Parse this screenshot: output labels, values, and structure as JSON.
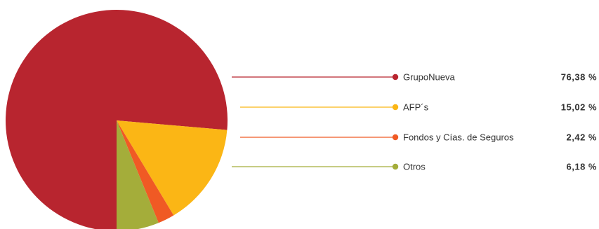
{
  "chart_data": {
    "type": "pie",
    "slices": [
      {
        "label": "GrupoNueva",
        "value": 76.38,
        "value_label": "76,38 %",
        "color": "#b8252f"
      },
      {
        "label": "AFP´s",
        "value": 15.02,
        "value_label": "15,02 %",
        "color": "#fbb615"
      },
      {
        "label": "Fondos y Cías. de Seguros",
        "value": 2.42,
        "value_label": "2,42 %",
        "color": "#f05a24"
      },
      {
        "label": "Otros",
        "value": 6.18,
        "value_label": "6,18 %",
        "color": "#a4ad3a"
      }
    ],
    "start_angle_deg": 0,
    "direction": "clockwise",
    "legend_position": "right"
  }
}
